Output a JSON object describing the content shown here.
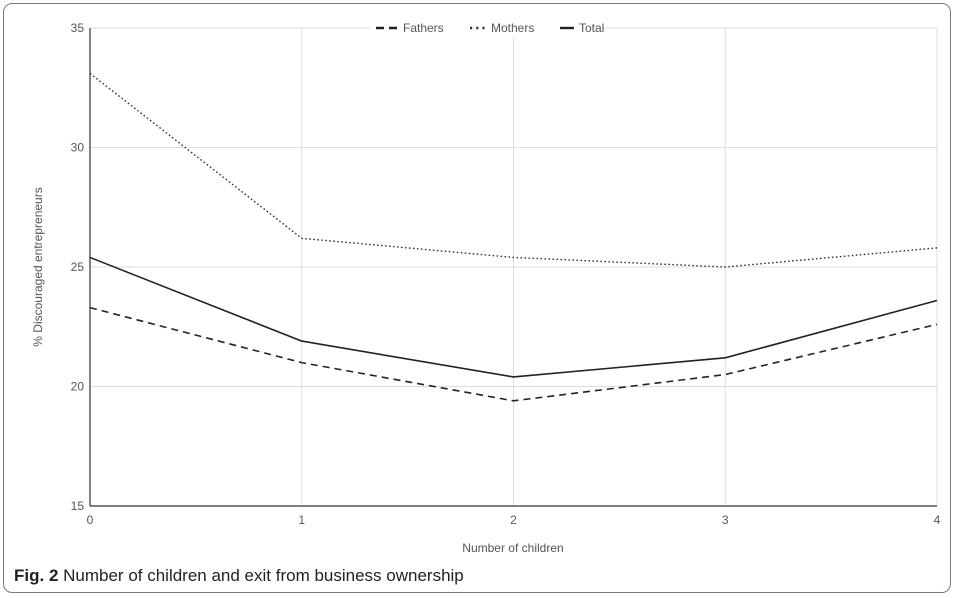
{
  "caption": {
    "label": "Fig. 2",
    "text": " Number of children and exit from business ownership"
  },
  "chart_data": {
    "type": "line",
    "xlabel": "Number of children",
    "ylabel": "% Discouraged entrepreneurs",
    "x": [
      0,
      1,
      2,
      3,
      4
    ],
    "xlim": [
      0,
      4
    ],
    "ylim": [
      15,
      35
    ],
    "yticks": [
      15,
      20,
      25,
      30,
      35
    ],
    "grid": true,
    "legend_position": "top-center",
    "series": [
      {
        "name": "Fathers",
        "values": [
          23.3,
          21.0,
          19.4,
          20.5,
          22.6
        ],
        "dash": "dashed",
        "color": "#222222"
      },
      {
        "name": "Mothers",
        "values": [
          33.1,
          26.2,
          25.4,
          25.0,
          25.8
        ],
        "dash": "dotted",
        "color": "#333333"
      },
      {
        "name": "Total",
        "values": [
          25.4,
          21.9,
          20.4,
          21.2,
          23.6
        ],
        "dash": "solid",
        "color": "#222222"
      }
    ]
  },
  "colors": {
    "grid": "#dddddd",
    "axis": "#333333",
    "text": "#555555",
    "border": "#7a7a7a"
  }
}
